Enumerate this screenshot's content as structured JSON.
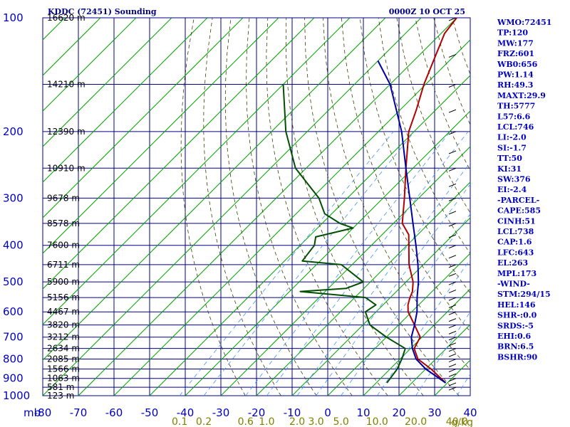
{
  "chart_data": {
    "type": "line",
    "title": "KDDC (72451) Sounding",
    "valid_time": "0000Z 10 OCT 25",
    "x_unit_label": "mb",
    "mixing_ratio_unit": "g/kg",
    "xlim": [
      -80,
      40
    ],
    "ylim": [
      1000,
      100
    ],
    "y_scale": "log-pressure",
    "grid": true,
    "temperature_ticks": [
      "-80",
      "-70",
      "-60",
      "-50",
      "-40",
      "-30",
      "-20",
      "-10",
      "0",
      "10",
      "20",
      "30",
      "40"
    ],
    "pressure_ticks": [
      {
        "p": 100,
        "label": "100"
      },
      {
        "p": 200,
        "label": "200"
      },
      {
        "p": 300,
        "label": "300"
      },
      {
        "p": 400,
        "label": "400"
      },
      {
        "p": 500,
        "label": "500"
      },
      {
        "p": 600,
        "label": "600"
      },
      {
        "p": 700,
        "label": "700"
      },
      {
        "p": 800,
        "label": "800"
      },
      {
        "p": 900,
        "label": "900"
      },
      {
        "p": 1000,
        "label": "1000"
      }
    ],
    "height_labels": [
      {
        "p": 100,
        "label": "16620 m"
      },
      {
        "p": 150,
        "label": "14210 m"
      },
      {
        "p": 200,
        "label": "12390 m"
      },
      {
        "p": 250,
        "label": "10910 m"
      },
      {
        "p": 300,
        "label": "9678 m"
      },
      {
        "p": 350,
        "label": "8578 m"
      },
      {
        "p": 400,
        "label": "7600 m"
      },
      {
        "p": 450,
        "label": "6711 m"
      },
      {
        "p": 500,
        "label": "5900 m"
      },
      {
        "p": 550,
        "label": "5156 m"
      },
      {
        "p": 600,
        "label": "4467 m"
      },
      {
        "p": 650,
        "label": "3820 m"
      },
      {
        "p": 700,
        "label": "3212 m"
      },
      {
        "p": 750,
        "label": "2634 m"
      },
      {
        "p": 800,
        "label": "2085 m"
      },
      {
        "p": 850,
        "label": "1566 m"
      },
      {
        "p": 900,
        "label": "1063 m"
      },
      {
        "p": 950,
        "label": "581 m"
      },
      {
        "p": 1000,
        "label": "123 m"
      }
    ],
    "mixing_ratio_ticks": [
      "0.1",
      "0.2",
      "0.6",
      "1.0",
      "2.0",
      "3.0",
      "5.0",
      "10.0",
      "20.0",
      "40.0"
    ],
    "series": [
      {
        "key": "temperature",
        "color": "#b00000",
        "points": [
          {
            "p": 925,
            "t": 29.5
          },
          {
            "p": 850,
            "t": 21.5
          },
          {
            "p": 800,
            "t": 15.0
          },
          {
            "p": 750,
            "t": 11.0
          },
          {
            "p": 700,
            "t": 9.5
          },
          {
            "p": 650,
            "t": 4.5
          },
          {
            "p": 600,
            "t": -1.0
          },
          {
            "p": 575,
            "t": -3.0
          },
          {
            "p": 550,
            "t": -4.5
          },
          {
            "p": 530,
            "t": -5.5
          },
          {
            "p": 500,
            "t": -8.0
          },
          {
            "p": 450,
            "t": -14.0
          },
          {
            "p": 400,
            "t": -19.5
          },
          {
            "p": 375,
            "t": -22.5
          },
          {
            "p": 350,
            "t": -27.5
          },
          {
            "p": 300,
            "t": -34.0
          },
          {
            "p": 250,
            "t": -42.0
          },
          {
            "p": 200,
            "t": -51.5
          },
          {
            "p": 175,
            "t": -55.5
          },
          {
            "p": 150,
            "t": -60.5
          },
          {
            "p": 125,
            "t": -65.5
          },
          {
            "p": 110,
            "t": -69.0
          },
          {
            "p": 100,
            "t": -70.0
          }
        ]
      },
      {
        "key": "dewpoint",
        "color": "#005000",
        "points": [
          {
            "p": 925,
            "t": 13.0
          },
          {
            "p": 850,
            "t": 12.0
          },
          {
            "p": 800,
            "t": 10.5
          },
          {
            "p": 750,
            "t": 8.5
          },
          {
            "p": 700,
            "t": 0.0
          },
          {
            "p": 650,
            "t": -8.0
          },
          {
            "p": 600,
            "t": -13.0
          },
          {
            "p": 575,
            "t": -12.0
          },
          {
            "p": 550,
            "t": -17.0
          },
          {
            "p": 530,
            "t": -37.0
          },
          {
            "p": 520,
            "t": -25.0
          },
          {
            "p": 500,
            "t": -22.0
          },
          {
            "p": 450,
            "t": -33.0
          },
          {
            "p": 440,
            "t": -45.0
          },
          {
            "p": 400,
            "t": -46.0
          },
          {
            "p": 380,
            "t": -48.0
          },
          {
            "p": 360,
            "t": -40.0
          },
          {
            "p": 350,
            "t": -45.0
          },
          {
            "p": 330,
            "t": -52.0
          },
          {
            "p": 300,
            "t": -58.0
          },
          {
            "p": 250,
            "t": -73.0
          },
          {
            "p": 200,
            "t": -86.0
          },
          {
            "p": 150,
            "t": -100.0
          }
        ]
      },
      {
        "key": "parcel",
        "color": "#0000a0",
        "points": [
          {
            "p": 925,
            "t": 29.5
          },
          {
            "p": 850,
            "t": 20.0
          },
          {
            "p": 800,
            "t": 14.5
          },
          {
            "p": 750,
            "t": 10.5
          },
          {
            "p": 700,
            "t": 7.0
          },
          {
            "p": 650,
            "t": 4.5
          },
          {
            "p": 600,
            "t": 1.5
          },
          {
            "p": 550,
            "t": -2.5
          },
          {
            "p": 500,
            "t": -6.5
          },
          {
            "p": 450,
            "t": -11.5
          },
          {
            "p": 400,
            "t": -17.5
          },
          {
            "p": 350,
            "t": -24.5
          },
          {
            "p": 300,
            "t": -32.5
          },
          {
            "p": 250,
            "t": -42.0
          },
          {
            "p": 200,
            "t": -53.5
          },
          {
            "p": 150,
            "t": -70.0
          },
          {
            "p": 130,
            "t": -80.0
          }
        ]
      }
    ]
  },
  "indices": [
    "WMO:72451",
    "TP:120",
    "MW:177",
    "FRZ:601",
    "WB0:656",
    "PW:1.14",
    "RH:49.3",
    "MAXT:29.9",
    "TH:5777",
    "L57:6.6",
    "LCL:746",
    "LI:-2.0",
    "SI:-1.7",
    "TT:50",
    "KI:31",
    "SW:376",
    "EI:-2.4",
    "-PARCEL-",
    "CAPE:585",
    "CINH:51",
    "LCL:738",
    "CAP:1.6",
    "LFC:643",
    "EL:263",
    "MPL:173",
    "-WIND-",
    "STM:294/15",
    "HEL:146",
    "SHR-:0.0",
    "SRDS:-5",
    "EHI:0.6",
    "BRN:6.5",
    "BSHR:90"
  ],
  "colors": {
    "grid": "#00008b",
    "isotherm": "#00a000",
    "dry_adiabat": "#404000",
    "mixing_ratio": "#4090ff",
    "wind": "#000000"
  }
}
